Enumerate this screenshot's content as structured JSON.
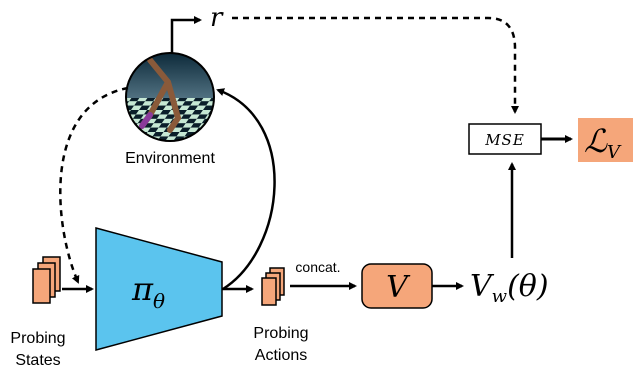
{
  "labels": {
    "environment": "Environment",
    "probing_states_line1": "Probing",
    "probing_states_line2": "States",
    "probing_actions_line1": "Probing",
    "probing_actions_line2": "Actions",
    "concat": "concat.",
    "reward": "r",
    "policy_pi": "π",
    "policy_sub": "θ",
    "value_net": "V",
    "value_output_main": "V",
    "value_output_sub": "w",
    "value_output_arg": "(θ)",
    "mse": "MSE",
    "loss_main": "ℒ",
    "loss_sub": "V"
  },
  "colors": {
    "policy_fill": "#5bc4ee",
    "value_fill": "#f5a67a",
    "loss_fill": "#f5a67a",
    "probe_card_fill": "#f5a67a"
  }
}
